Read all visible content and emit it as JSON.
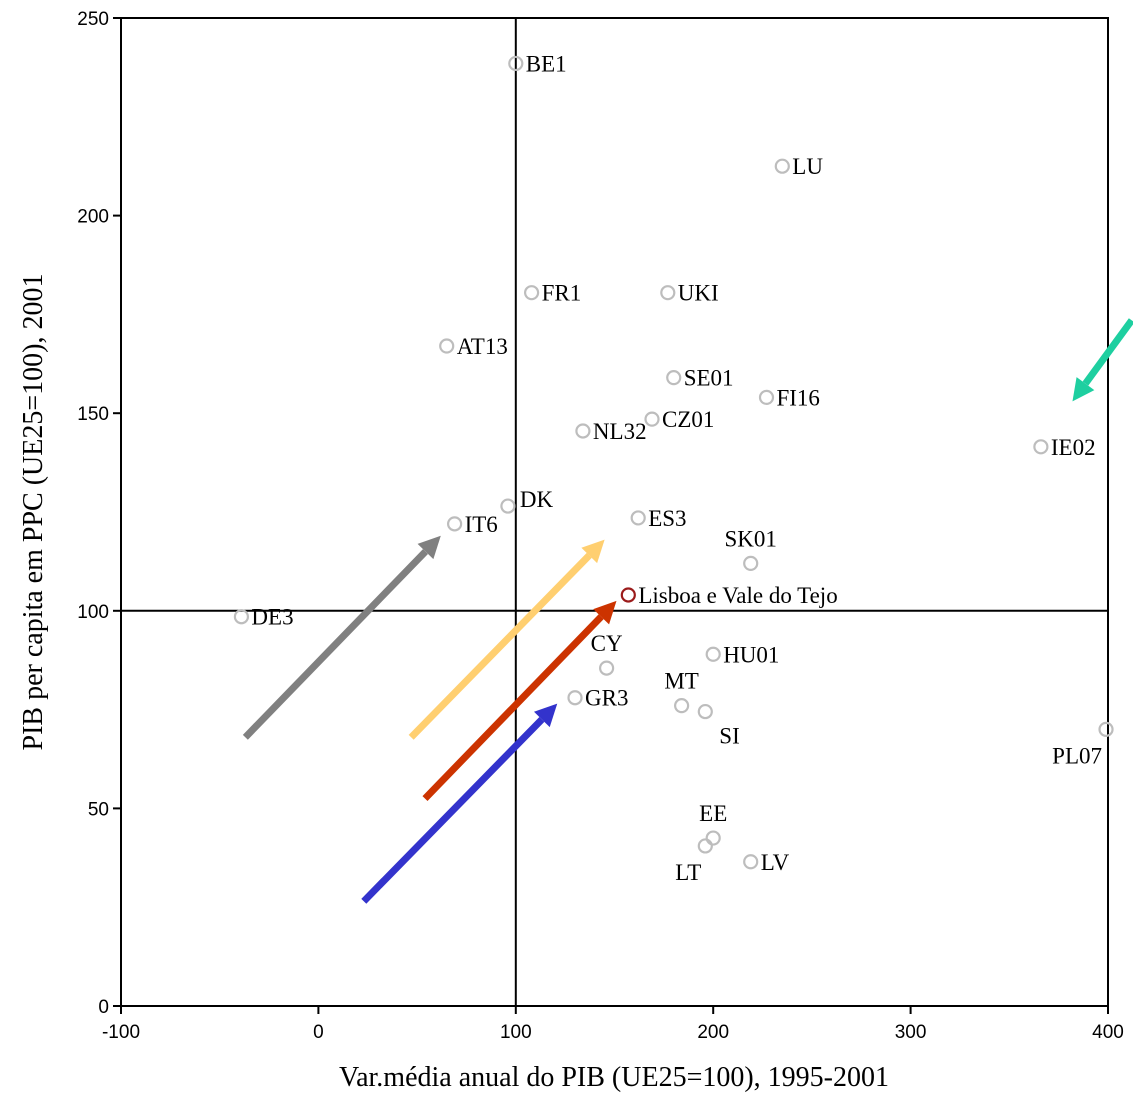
{
  "chart_data": {
    "type": "scatter",
    "xlabel": "Var.média anual do PIB (UE25=100), 1995-2001",
    "ylabel": "PIB per capita em PPC (UE25=100), 2001",
    "xlim": [
      -100,
      400
    ],
    "ylim": [
      0,
      250
    ],
    "xticks": [
      "-100",
      "0",
      "100",
      "200",
      "300",
      "400"
    ],
    "yticks": [
      "0",
      "50",
      "100",
      "150",
      "200",
      "250"
    ],
    "reference_lines": {
      "x": 100,
      "y": 100
    },
    "grid": false,
    "marker_color": "#bdbdbd",
    "highlight_color": "#9b1b1b",
    "points": [
      {
        "label": "BE1",
        "x": 100,
        "y": 238.5,
        "anchor": "right"
      },
      {
        "label": "LU",
        "x": 235,
        "y": 212.5,
        "anchor": "right"
      },
      {
        "label": "FR1",
        "x": 108,
        "y": 180.5,
        "anchor": "right"
      },
      {
        "label": "UKI",
        "x": 177,
        "y": 180.5,
        "anchor": "right"
      },
      {
        "label": "AT13",
        "x": 65,
        "y": 167,
        "anchor": "right"
      },
      {
        "label": "SE01",
        "x": 180,
        "y": 159,
        "anchor": "right"
      },
      {
        "label": "FI16",
        "x": 227,
        "y": 154,
        "anchor": "right"
      },
      {
        "label": "CZ01",
        "x": 169,
        "y": 148.5,
        "anchor": "right"
      },
      {
        "label": "NL32",
        "x": 134,
        "y": 145.5,
        "anchor": "right"
      },
      {
        "label": "IE02",
        "x": 366,
        "y": 141.5,
        "anchor": "right"
      },
      {
        "label": "DK",
        "x": 96,
        "y": 126.5,
        "anchor": "right-up"
      },
      {
        "label": "ES3",
        "x": 162,
        "y": 123.5,
        "anchor": "right"
      },
      {
        "label": "IT6",
        "x": 69,
        "y": 122,
        "anchor": "right"
      },
      {
        "label": "SK01",
        "x": 219,
        "y": 112,
        "anchor": "above"
      },
      {
        "label": "Lisboa e Vale do Tejo",
        "x": 157,
        "y": 104,
        "anchor": "right",
        "highlight": true
      },
      {
        "label": "DE3",
        "x": -39,
        "y": 98.5,
        "anchor": "right"
      },
      {
        "label": "HU01",
        "x": 200,
        "y": 89,
        "anchor": "right"
      },
      {
        "label": "CY",
        "x": 146,
        "y": 85.5,
        "anchor": "above"
      },
      {
        "label": "GR3",
        "x": 130,
        "y": 78,
        "anchor": "right"
      },
      {
        "label": "MT",
        "x": 184,
        "y": 76,
        "anchor": "above-left"
      },
      {
        "label": "SI",
        "x": 196,
        "y": 74.5,
        "anchor": "below-right"
      },
      {
        "label": "PL07",
        "x": 399,
        "y": 70,
        "anchor": "below-left"
      },
      {
        "label": "EE",
        "x": 200,
        "y": 42.5,
        "anchor": "above"
      },
      {
        "label": "LT",
        "x": 196,
        "y": 40.5,
        "anchor": "below-left"
      },
      {
        "label": "LV",
        "x": 219,
        "y": 36.5,
        "anchor": "right"
      }
    ],
    "arrows": [
      {
        "color": "#808080",
        "from": [
          -37,
          68
        ],
        "to": [
          62,
          119
        ]
      },
      {
        "color": "#ffcf70",
        "from": [
          47,
          68
        ],
        "to": [
          145,
          118
        ]
      },
      {
        "color": "#cc3300",
        "from": [
          54,
          52.5
        ],
        "to": [
          151,
          102.5
        ]
      },
      {
        "color": "#3333cc",
        "from": [
          23,
          26.5
        ],
        "to": [
          121,
          76.5
        ]
      },
      {
        "color": "#1ecfa0",
        "from": [
          412,
          173.5
        ],
        "to": [
          382,
          153
        ]
      }
    ]
  }
}
